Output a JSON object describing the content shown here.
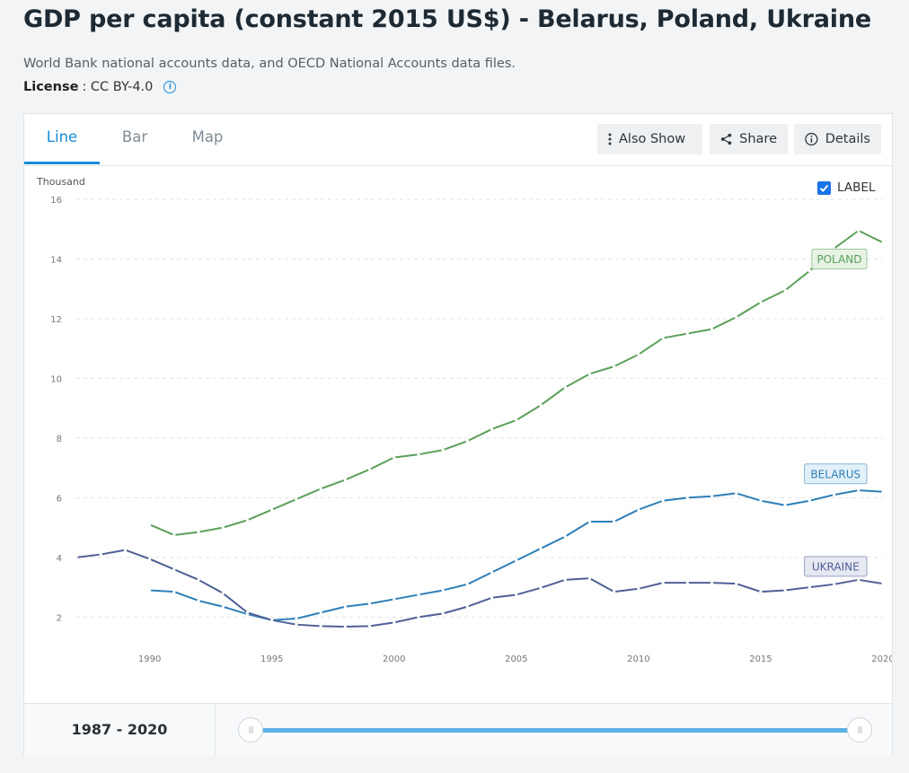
{
  "header": {
    "title": "GDP per capita (constant 2015 US$) - Belarus, Poland, Ukraine",
    "source": "World Bank national accounts data, and OECD National Accounts data files.",
    "license_key": "License",
    "license_value": ": CC BY-4.0"
  },
  "tabs": [
    {
      "label": "Line",
      "active": true
    },
    {
      "label": "Bar",
      "active": false
    },
    {
      "label": "Map",
      "active": false
    }
  ],
  "toolbar": {
    "also_show": "Also Show",
    "share": "Share",
    "details": "Details"
  },
  "label_toggle": {
    "label": "LABEL",
    "checked": true
  },
  "range": {
    "label": "1987 - 2020",
    "start": 1987,
    "end": 2020
  },
  "icons": [
    "info-icon",
    "kebab-icon",
    "share-icon",
    "info-circle-icon",
    "checkmark-icon",
    "slider-grip-icon"
  ],
  "colors": {
    "accent": "#1a8cd8",
    "poland": "#5aa05a",
    "belarus": "#2e7fb8",
    "ukraine": "#4f6096"
  },
  "chart_data": {
    "type": "line",
    "ylabel": "Thousand",
    "ylim": [
      1.5,
      16.3
    ],
    "yticks": [
      2,
      4,
      6,
      8,
      10,
      12,
      14,
      16
    ],
    "xlim": [
      1987,
      2020
    ],
    "xticks": [
      1990,
      1995,
      2000,
      2005,
      2010,
      2015,
      2020
    ],
    "grid": true,
    "series": [
      {
        "name": "POLAND",
        "color": "#5aa05a",
        "x": [
          1990,
          1991,
          1992,
          1993,
          1994,
          1995,
          1996,
          1997,
          1998,
          1999,
          2000,
          2001,
          2002,
          2003,
          2004,
          2005,
          2006,
          2007,
          2008,
          2009,
          2010,
          2011,
          2012,
          2013,
          2014,
          2015,
          2016,
          2017,
          2018,
          2019,
          2020
        ],
        "values": [
          5.1,
          4.75,
          4.85,
          5.0,
          5.25,
          5.6,
          5.95,
          6.3,
          6.6,
          6.95,
          7.35,
          7.45,
          7.6,
          7.9,
          8.3,
          8.6,
          9.1,
          9.7,
          10.15,
          10.4,
          10.8,
          11.35,
          11.5,
          11.65,
          12.05,
          12.55,
          12.95,
          13.6,
          14.35,
          14.95,
          14.55
        ]
      },
      {
        "name": "BELARUS",
        "color": "#2e7fb8",
        "x": [
          1990,
          1991,
          1992,
          1993,
          1994,
          1995,
          1996,
          1997,
          1998,
          1999,
          2000,
          2001,
          2002,
          2003,
          2004,
          2005,
          2006,
          2007,
          2008,
          2009,
          2010,
          2011,
          2012,
          2013,
          2014,
          2015,
          2016,
          2017,
          2018,
          2019,
          2020
        ],
        "values": [
          2.9,
          2.85,
          2.55,
          2.35,
          2.1,
          1.9,
          1.95,
          2.15,
          2.35,
          2.45,
          2.6,
          2.75,
          2.9,
          3.1,
          3.5,
          3.9,
          4.3,
          4.7,
          5.2,
          5.2,
          5.6,
          5.9,
          6.0,
          6.05,
          6.15,
          5.9,
          5.75,
          5.9,
          6.1,
          6.25,
          6.2
        ]
      },
      {
        "name": "UKRAINE",
        "color": "#4f6096",
        "x": [
          1987,
          1988,
          1989,
          1990,
          1991,
          1992,
          1993,
          1994,
          1995,
          1996,
          1997,
          1998,
          1999,
          2000,
          2001,
          2002,
          2003,
          2004,
          2005,
          2006,
          2007,
          2008,
          2009,
          2010,
          2011,
          2012,
          2013,
          2014,
          2015,
          2016,
          2017,
          2018,
          2019,
          2020
        ],
        "values": [
          4.0,
          4.1,
          4.25,
          3.95,
          3.6,
          3.25,
          2.8,
          2.15,
          1.9,
          1.75,
          1.7,
          1.68,
          1.7,
          1.82,
          2.0,
          2.12,
          2.35,
          2.65,
          2.75,
          2.98,
          3.25,
          3.3,
          2.85,
          2.95,
          3.15,
          3.15,
          3.15,
          3.12,
          2.85,
          2.9,
          3.0,
          3.1,
          3.25,
          3.12
        ]
      }
    ]
  }
}
